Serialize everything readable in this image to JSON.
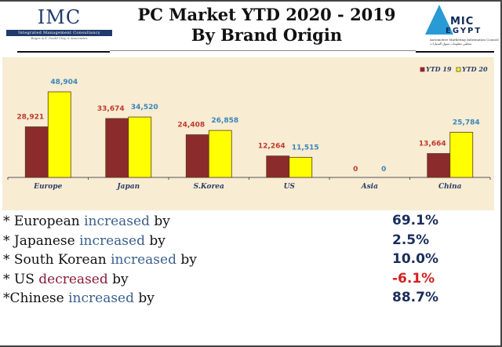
{
  "header": {
    "title_line1": "PC Market YTD 2020 - 2019",
    "title_line2": "By Brand Origin",
    "left_logo": {
      "name": "IMC",
      "subtitle": "Integrated Management Consultancy",
      "tagline": "Roger A.T. Gould Clay & Associates"
    },
    "right_logo": {
      "line1": "MIC",
      "line2": "EGYPT",
      "subtitle": "Automotive Marketing Information Council",
      "subtitle_ar": "مجلس معلومات سوق السيارات"
    }
  },
  "chart_data": {
    "type": "bar",
    "title": "PC Market YTD 2020 - 2019 By Brand Origin",
    "xlabel": "",
    "ylabel": "",
    "categories": [
      "Europe",
      "Japan",
      "S.Korea",
      "US",
      "Asia",
      "China"
    ],
    "series": [
      {
        "name": "YTD 19",
        "color": "#8b2b2b",
        "label_color": "#c0392b",
        "values": [
          28921,
          33674,
          24408,
          12264,
          0,
          13664
        ],
        "labels": [
          "28,921",
          "33,674",
          "24,408",
          "12,264",
          "0",
          "13,664"
        ]
      },
      {
        "name": "YTD 20",
        "color": "#ffff00",
        "label_color": "#3a86b8",
        "values": [
          48904,
          34520,
          26858,
          11515,
          0,
          25784
        ],
        "labels": [
          "48,904",
          "34,520",
          "26,858",
          "11,515",
          "0",
          "25,784"
        ]
      }
    ],
    "ylim": [
      0,
      50000
    ],
    "grid": false,
    "legend": "top-right",
    "background": "#f8ecd3"
  },
  "summary": [
    {
      "prefix": "* European ",
      "keyword": "increased",
      "suffix": " by",
      "direction": "increase",
      "value": "69.1%"
    },
    {
      "prefix": "* Japanese ",
      "keyword": "increased",
      "suffix": " by",
      "direction": "increase",
      "value": "2.5%"
    },
    {
      "prefix": "* South Korean ",
      "keyword": "increased",
      "suffix": " by",
      "direction": "increase",
      "value": "10.0%"
    },
    {
      "prefix": "* US ",
      "keyword": "decreased",
      "suffix": " by",
      "direction": "decrease",
      "value": "-6.1%"
    },
    {
      "prefix": "*Chinese ",
      "keyword": "increased",
      "suffix": " by",
      "direction": "increase",
      "value": "88.7%"
    }
  ]
}
